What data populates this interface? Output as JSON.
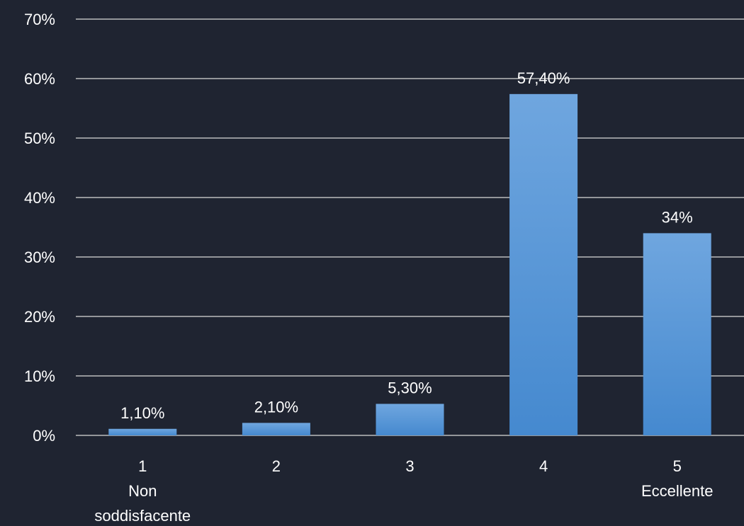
{
  "chart_data": {
    "type": "bar",
    "categories": [
      "1",
      "2",
      "3",
      "4",
      "5"
    ],
    "category_sublabels": [
      "Non soddisfacente",
      "",
      "",
      "",
      "Eccellente"
    ],
    "values": [
      1.1,
      2.1,
      5.3,
      57.4,
      34
    ],
    "data_labels": [
      "1,10%",
      "2,10%",
      "5,30%",
      "57,40%",
      "34%"
    ],
    "yticks": [
      "0%",
      "10%",
      "20%",
      "30%",
      "40%",
      "50%",
      "60%",
      "70%"
    ],
    "ylim": [
      0,
      70
    ],
    "grid": true,
    "legend": "none"
  },
  "colors": {
    "background": "#1f2431",
    "bar_top": "#6fa6df",
    "bar_bottom": "#4589cf",
    "gridline": "#d9d9d9",
    "text": "#ffffff"
  }
}
